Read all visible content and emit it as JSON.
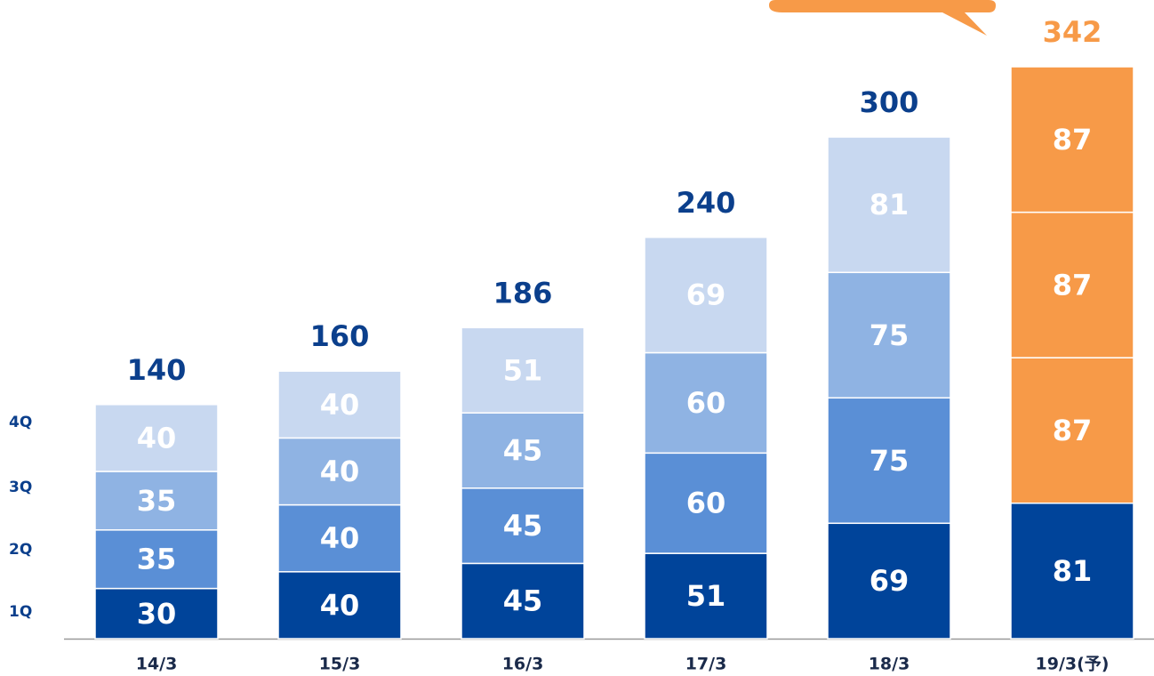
{
  "chart_data": {
    "type": "stacked_bar",
    "categories": [
      "14/3",
      "15/3",
      "16/3",
      "17/3",
      "18/3",
      "19/3(予)"
    ],
    "series": [
      {
        "name": "1Q",
        "color": "#00449a",
        "colors": [
          "#00449a",
          "#00449a",
          "#00449a",
          "#00449a",
          "#00449a",
          "#00449a"
        ],
        "values": [
          30,
          40,
          45,
          51,
          69,
          81
        ]
      },
      {
        "name": "2Q",
        "color": "#5a8fd6",
        "colors": [
          "#5a8fd6",
          "#5a8fd6",
          "#5a8fd6",
          "#5a8fd6",
          "#5a8fd6",
          "#f79a48"
        ],
        "values": [
          35,
          40,
          45,
          60,
          75,
          87
        ]
      },
      {
        "name": "3Q",
        "color": "#8fb3e3",
        "colors": [
          "#8fb3e3",
          "#8fb3e3",
          "#8fb3e3",
          "#8fb3e3",
          "#8fb3e3",
          "#f79a48"
        ],
        "values": [
          35,
          40,
          45,
          60,
          75,
          87
        ]
      },
      {
        "name": "4Q",
        "color": "#c8d8f0",
        "colors": [
          "#c8d8f0",
          "#c8d8f0",
          "#c8d8f0",
          "#c8d8f0",
          "#c8d8f0",
          "#f79a48"
        ],
        "values": [
          40,
          40,
          51,
          69,
          81,
          87
        ]
      }
    ],
    "totals": [
      140,
      160,
      186,
      240,
      300,
      342
    ],
    "total_colors": [
      "#0b3f8c",
      "#0b3f8c",
      "#0b3f8c",
      "#0b3f8c",
      "#0b3f8c",
      "#f79a48"
    ],
    "ylim": [
      0,
      350
    ]
  }
}
